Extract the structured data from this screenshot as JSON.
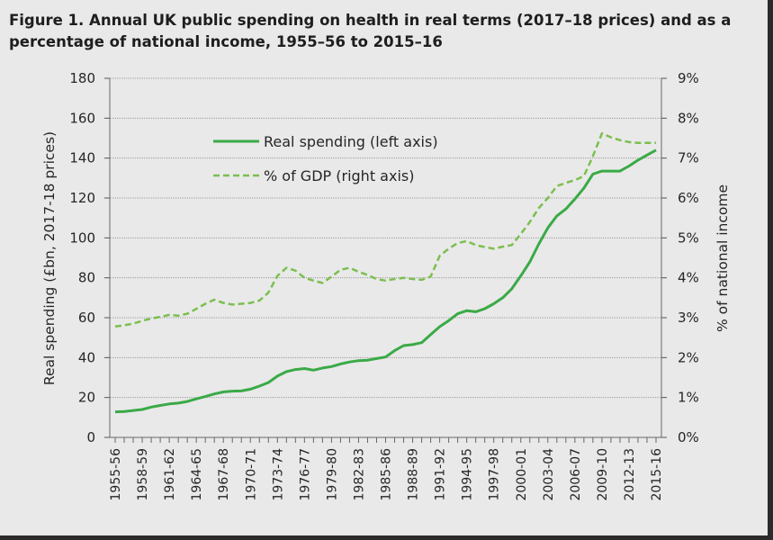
{
  "title": "Figure 1. Annual UK public spending on health in real terms (2017–18 prices) and as a percentage of national income, 1955–56 to 2015–16",
  "chart_data": {
    "type": "line",
    "title": "Figure 1. Annual UK public spending on health in real terms (2017–18 prices) and as a percentage of national income, 1955–56 to 2015–16",
    "ylabel": "Real spending (£bn, 2017-18 prices)",
    "y2label": "% of national income",
    "ylim": [
      0,
      180
    ],
    "y2lim": [
      0,
      9
    ],
    "yticks": [
      "0",
      "20",
      "40",
      "60",
      "80",
      "100",
      "120",
      "140",
      "160",
      "180"
    ],
    "y2ticks": [
      "0%",
      "1%",
      "2%",
      "3%",
      "4%",
      "5%",
      "6%",
      "7%",
      "8%",
      "9%"
    ],
    "grid": true,
    "legend_position": "top-left",
    "x": [
      "1955-56",
      "1956-57",
      "1957-58",
      "1958-59",
      "1959-60",
      "1960-61",
      "1961-62",
      "1962-63",
      "1963-64",
      "1964-65",
      "1965-66",
      "1966-67",
      "1967-68",
      "1968-69",
      "1969-70",
      "1970-71",
      "1971-72",
      "1972-73",
      "1973-74",
      "1974-75",
      "1975-76",
      "1976-77",
      "1977-78",
      "1978-79",
      "1979-80",
      "1980-81",
      "1981-82",
      "1982-83",
      "1983-84",
      "1984-85",
      "1985-86",
      "1986-87",
      "1987-88",
      "1988-89",
      "1989-90",
      "1990-91",
      "1991-92",
      "1992-93",
      "1993-94",
      "1994-95",
      "1995-96",
      "1996-97",
      "1997-98",
      "1998-99",
      "1999-00",
      "2000-01",
      "2001-02",
      "2002-03",
      "2003-04",
      "2004-05",
      "2005-06",
      "2006-07",
      "2007-08",
      "2008-09",
      "2009-10",
      "2010-11",
      "2011-12",
      "2012-13",
      "2013-14",
      "2014-15",
      "2015-16"
    ],
    "x_tick_labels": [
      "1955-56",
      "1958-59",
      "1961-62",
      "1964-65",
      "1967-68",
      "1970-71",
      "1973-74",
      "1976-77",
      "1979-80",
      "1982-83",
      "1985-86",
      "1988-89",
      "1991-92",
      "1994-95",
      "1997-98",
      "2000-01",
      "2003-04",
      "2006-07",
      "2009-10",
      "2012-13",
      "2015-16"
    ],
    "series": [
      {
        "name": "Real spending (left axis)",
        "axis": "left",
        "style": "solid",
        "color": "#3aaa47",
        "values": [
          12.8,
          13.0,
          13.5,
          14.0,
          15.2,
          16.0,
          16.8,
          17.2,
          18.0,
          19.3,
          20.5,
          21.8,
          22.8,
          23.2,
          23.3,
          24.2,
          25.7,
          27.5,
          30.7,
          33.0,
          34.0,
          34.5,
          33.7,
          34.8,
          35.5,
          36.8,
          37.8,
          38.5,
          38.7,
          39.5,
          40.3,
          43.5,
          46.0,
          46.5,
          47.5,
          51.5,
          55.5,
          58.5,
          62.0,
          63.5,
          63.0,
          64.5,
          67.0,
          70.0,
          74.5,
          81.0,
          88.0,
          97.0,
          105.0,
          111.0,
          114.5,
          119.5,
          125.0,
          132.0,
          133.5,
          133.5,
          133.5,
          136.0,
          139.0,
          141.5,
          144.0
        ]
      },
      {
        "name": "% of GDP (right axis)",
        "axis": "right",
        "style": "dashed",
        "color": "#7bbf4f",
        "values": [
          2.78,
          2.81,
          2.85,
          2.92,
          2.98,
          3.02,
          3.07,
          3.05,
          3.1,
          3.22,
          3.35,
          3.45,
          3.37,
          3.33,
          3.35,
          3.37,
          3.43,
          3.63,
          4.05,
          4.25,
          4.18,
          4.0,
          3.93,
          3.87,
          4.03,
          4.2,
          4.25,
          4.15,
          4.07,
          3.97,
          3.93,
          3.97,
          4.0,
          3.97,
          3.95,
          4.03,
          4.55,
          4.73,
          4.87,
          4.92,
          4.82,
          4.77,
          4.73,
          4.78,
          4.82,
          5.1,
          5.4,
          5.75,
          6.0,
          6.3,
          6.38,
          6.45,
          6.55,
          7.05,
          7.62,
          7.52,
          7.45,
          7.4,
          7.38,
          7.38,
          7.38
        ]
      }
    ]
  }
}
